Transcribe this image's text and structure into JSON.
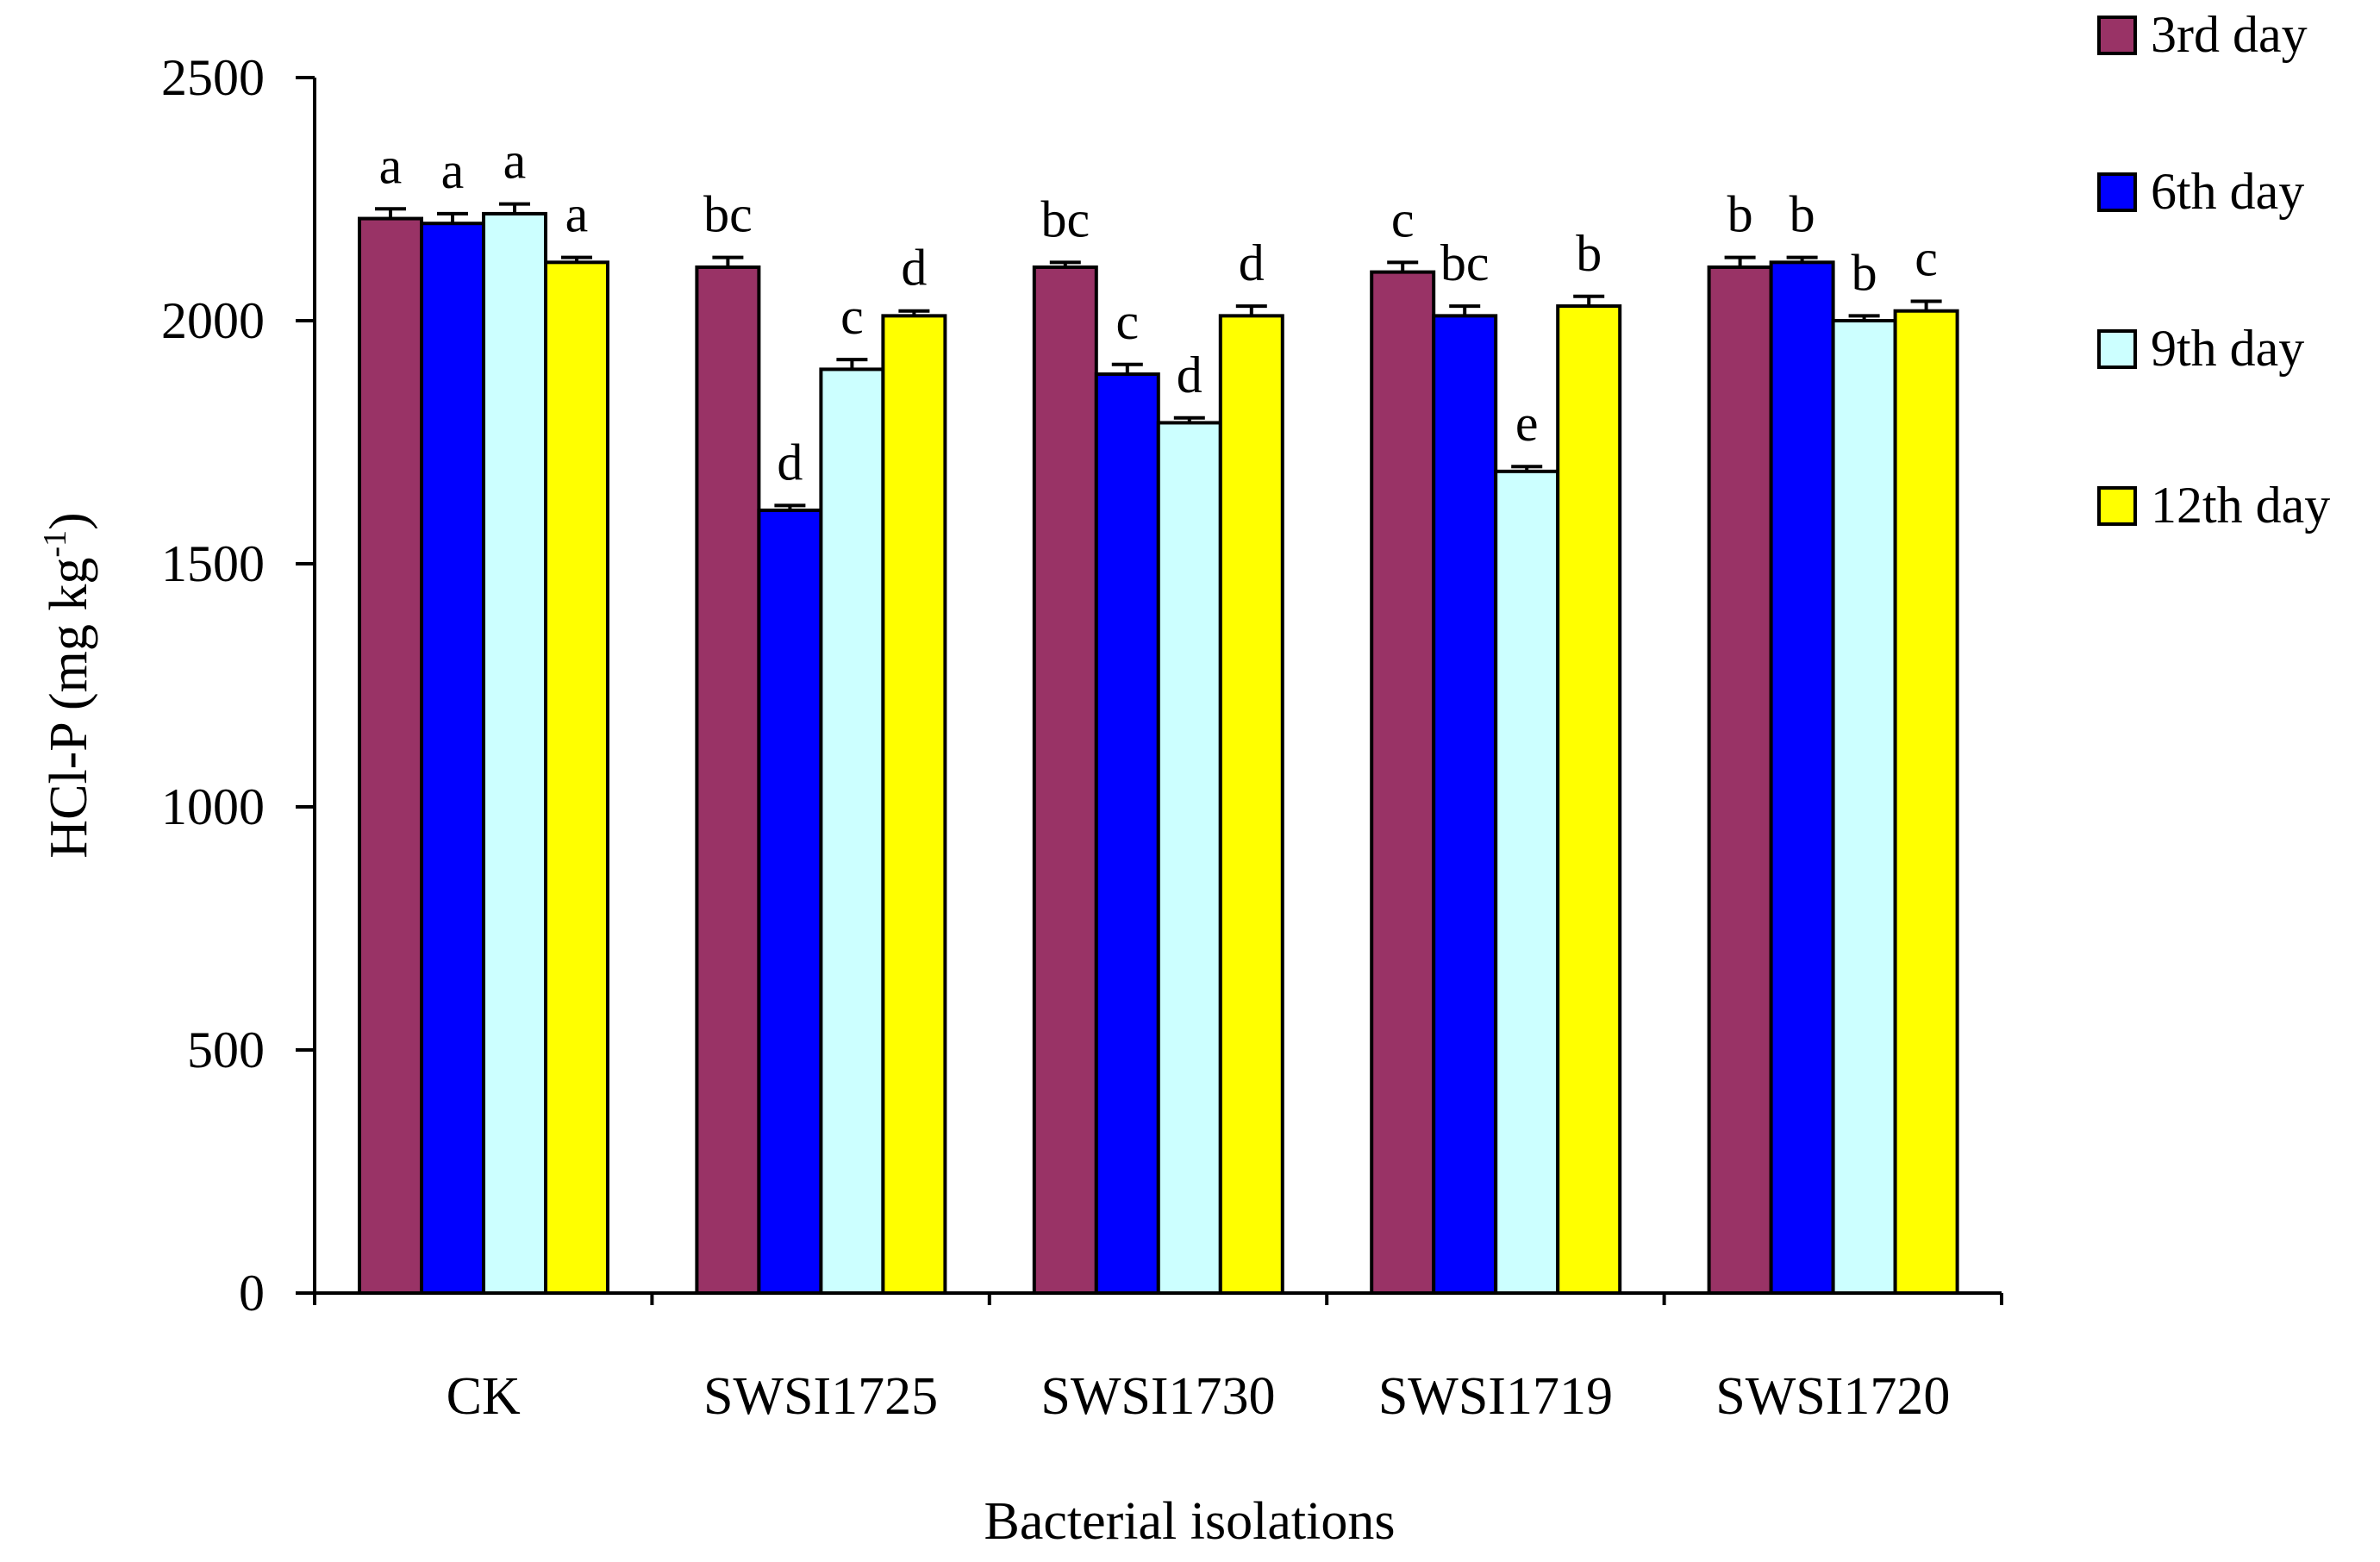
{
  "chart_data": {
    "type": "bar",
    "title": "",
    "xlabel": "Bacterial isolations",
    "ylabel_main": "HCl-P (mg kg",
    "ylabel_sup": "-1",
    "ylabel_end": ")",
    "ylim": [
      0,
      2500
    ],
    "yticks": [
      0,
      500,
      1000,
      1500,
      2000,
      2500
    ],
    "grid": false,
    "legend_position": "top-right",
    "categories": [
      "CK",
      "SWSI1725",
      "SWSI1730",
      "SWSI1719",
      "SWSI1720"
    ],
    "series": [
      {
        "name": "3rd day",
        "color": "#993366",
        "values": [
          2210,
          2110,
          2110,
          2100,
          2110
        ],
        "errors": [
          20,
          20,
          10,
          20,
          20
        ],
        "sig": [
          "a",
          "bc",
          "bc",
          "c",
          "b"
        ]
      },
      {
        "name": "6th day",
        "color": "#0000ff",
        "values": [
          2200,
          1610,
          1890,
          2010,
          2120
        ],
        "errors": [
          20,
          10,
          20,
          20,
          10
        ],
        "sig": [
          "a",
          "d",
          "c",
          "bc",
          "b"
        ]
      },
      {
        "name": "9th day",
        "color": "#ccffff",
        "values": [
          2220,
          1900,
          1790,
          1690,
          2000
        ],
        "errors": [
          20,
          20,
          10,
          10,
          10
        ],
        "sig": [
          "a",
          "c",
          "d",
          "e",
          "b"
        ]
      },
      {
        "name": "12th day",
        "color": "#ffff00",
        "values": [
          2120,
          2010,
          2010,
          2030,
          2020
        ],
        "errors": [
          10,
          10,
          20,
          20,
          20
        ],
        "sig": [
          "a",
          "d",
          "d",
          "b",
          "c"
        ]
      }
    ]
  }
}
